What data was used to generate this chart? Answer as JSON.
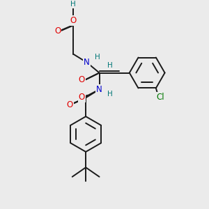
{
  "background_color": "#ebebeb",
  "bond_color": "#1a1a1a",
  "atom_colors": {
    "O": "#e00000",
    "N": "#0000cc",
    "Cl": "#007700",
    "H": "#007777",
    "C": "#1a1a1a"
  },
  "figsize": [
    3.0,
    3.0
  ],
  "dpi": 100
}
